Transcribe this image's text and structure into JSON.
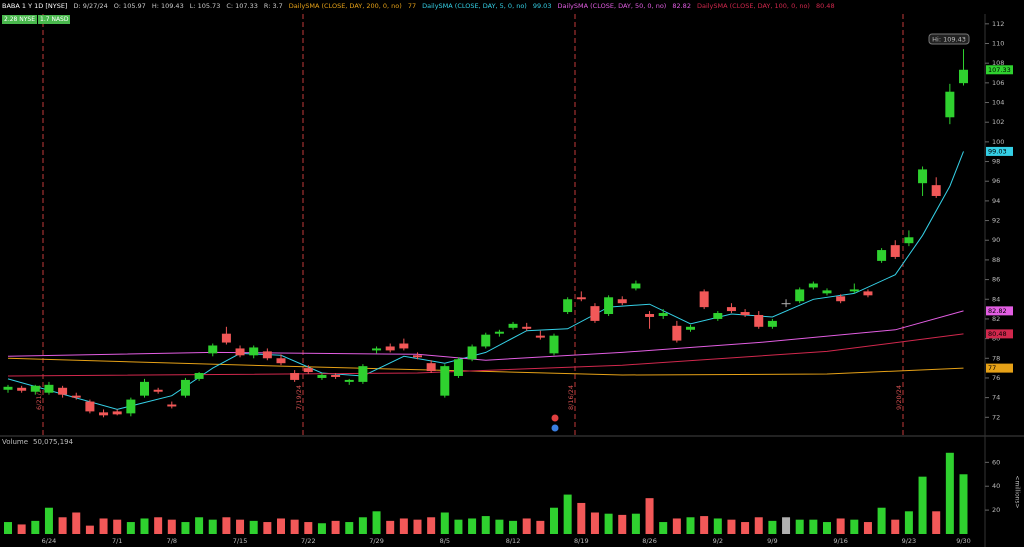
{
  "chart_data": {
    "type": "candlestick",
    "title": "BABA 1 Y 1D [NYSE]",
    "header": [
      "D: 9/27/24",
      "O: 105.97",
      "H: 109.43",
      "L: 105.73",
      "C: 107.33",
      "R: 3.7"
    ],
    "badges": [
      "2.28 NYSE",
      "1.7 NASD"
    ],
    "hi_label": "Hi: 109.43",
    "events": [
      "6/21/24",
      "7/19/24",
      "8/16/24",
      "9/20/24"
    ],
    "categories": [
      null,
      null,
      null,
      "6/24",
      null,
      null,
      null,
      null,
      "7/1",
      null,
      null,
      null,
      "7/8",
      null,
      null,
      null,
      null,
      "7/15",
      null,
      null,
      null,
      null,
      "7/22",
      null,
      null,
      null,
      null,
      "7/29",
      null,
      null,
      null,
      null,
      "8/5",
      null,
      null,
      null,
      null,
      "8/12",
      null,
      null,
      null,
      null,
      "8/19",
      null,
      null,
      null,
      null,
      "8/26",
      null,
      null,
      null,
      null,
      "9/2",
      null,
      null,
      null,
      "9/9",
      null,
      null,
      null,
      null,
      "9/16",
      null,
      null,
      null,
      null,
      "9/23",
      null,
      null,
      null,
      "9/30"
    ],
    "open": [
      74.8,
      75.0,
      74.6,
      74.5,
      75.0,
      74.2,
      73.6,
      72.5,
      72.6,
      72.4,
      74.2,
      74.8,
      73.3,
      74.2,
      75.9,
      78.5,
      80.5,
      79.0,
      78.3,
      78.7,
      78.0,
      76.5,
      77.0,
      76.0,
      76.3,
      75.6,
      75.6,
      78.8,
      79.2,
      79.5,
      78.3,
      77.5,
      74.2,
      76.2,
      77.9,
      79.2,
      80.5,
      81.1,
      81.2,
      80.3,
      78.5,
      82.7,
      84.2,
      83.3,
      82.5,
      84.0,
      85.1,
      82.5,
      82.3,
      81.3,
      80.9,
      84.8,
      82.0,
      83.2,
      82.7,
      82.4,
      81.2,
      83.6,
      83.8,
      85.2,
      84.6,
      84.3,
      84.8,
      84.8,
      87.9,
      89.5,
      89.7,
      95.8,
      95.6,
      102.5,
      105.97
    ],
    "high": [
      75.3,
      75.2,
      75.3,
      75.6,
      75.2,
      74.5,
      73.8,
      72.8,
      72.8,
      74.0,
      75.9,
      75.0,
      73.6,
      76.0,
      76.6,
      79.5,
      81.2,
      79.3,
      79.3,
      79.0,
      78.4,
      76.8,
      77.3,
      76.5,
      76.5,
      75.9,
      77.4,
      79.2,
      79.5,
      80.0,
      78.6,
      77.8,
      77.4,
      78.1,
      79.4,
      80.6,
      80.9,
      81.7,
      81.6,
      80.8,
      80.5,
      84.2,
      84.8,
      83.6,
      84.4,
      84.3,
      85.9,
      82.8,
      83.0,
      81.8,
      81.4,
      85.0,
      82.8,
      83.6,
      83.0,
      82.8,
      82.0,
      84.0,
      85.2,
      85.8,
      85.1,
      84.5,
      85.6,
      85.0,
      89.2,
      90.0,
      91.0,
      97.5,
      96.4,
      105.9,
      109.43
    ],
    "low": [
      74.5,
      74.5,
      74.3,
      74.3,
      74.0,
      73.8,
      72.4,
      72.0,
      72.2,
      72.1,
      74.0,
      74.4,
      72.9,
      74.0,
      75.7,
      78.2,
      79.4,
      78.1,
      78.0,
      77.8,
      77.3,
      75.6,
      76.4,
      75.8,
      75.9,
      75.3,
      75.4,
      78.5,
      78.6,
      78.8,
      77.9,
      76.5,
      74.0,
      76.0,
      77.7,
      79.0,
      80.2,
      80.9,
      80.8,
      79.9,
      78.3,
      82.5,
      83.8,
      81.6,
      82.3,
      83.4,
      84.9,
      81.0,
      82.0,
      79.6,
      80.7,
      83.0,
      81.8,
      82.6,
      82.2,
      81.0,
      81.0,
      83.2,
      83.6,
      85.0,
      84.4,
      83.6,
      84.6,
      84.2,
      87.7,
      88.1,
      89.4,
      94.5,
      94.3,
      101.8,
      105.73
    ],
    "close": [
      75.1,
      74.7,
      75.2,
      75.3,
      74.3,
      74.0,
      72.6,
      72.2,
      72.3,
      73.8,
      75.6,
      74.6,
      73.1,
      75.8,
      76.5,
      79.3,
      79.6,
      78.3,
      79.1,
      78.0,
      77.5,
      75.8,
      76.6,
      76.3,
      76.1,
      75.8,
      77.2,
      79.0,
      78.8,
      79.0,
      78.1,
      76.7,
      77.2,
      77.9,
      79.2,
      80.4,
      80.7,
      81.5,
      81.0,
      80.1,
      80.3,
      84.0,
      84.0,
      81.8,
      84.2,
      83.6,
      85.6,
      82.2,
      82.6,
      79.8,
      81.2,
      83.2,
      82.6,
      82.8,
      82.4,
      81.2,
      81.8,
      83.6,
      85.0,
      85.6,
      84.9,
      83.8,
      85.0,
      84.4,
      89.0,
      88.3,
      90.3,
      97.2,
      94.5,
      105.1,
      107.33
    ],
    "colors": {
      "up": "#2fd12f",
      "down": "#f25858",
      "flat": "#b0b0b0"
    },
    "ylim": [
      70.2,
      113.0
    ],
    "yticks": [
      72,
      74,
      76,
      78,
      80,
      82,
      84,
      86,
      88,
      90,
      92,
      94,
      96,
      98,
      100,
      102,
      104,
      106,
      108,
      110,
      112
    ],
    "overlays": [
      {
        "name": "DailySMA (CLOSE, DAY, 200, 0, no)",
        "color": "#e6a117",
        "x": [
          0,
          20,
          45,
          60,
          70
        ],
        "values": [
          78.0,
          77.2,
          76.3,
          76.4,
          77
        ]
      },
      {
        "name": "DailySMA (CLOSE, DAY, 5, 0, no)",
        "color": "#35d0e6",
        "x": [
          0,
          8,
          12,
          15,
          17,
          20,
          23,
          26,
          29,
          32,
          35,
          38,
          41,
          44,
          47,
          50,
          53,
          56,
          59,
          62,
          65,
          67,
          69,
          70
        ],
        "values": [
          75.9,
          72.8,
          74.2,
          77.0,
          78.5,
          78.3,
          76.5,
          76.2,
          78.2,
          77.5,
          78.6,
          80.8,
          81.0,
          83.2,
          83.5,
          81.5,
          82.5,
          82.2,
          84.0,
          84.6,
          86.5,
          90.5,
          95.5,
          99.03
        ]
      },
      {
        "name": "DailySMA (CLOSE, DAY, 50, 0, no)",
        "color": "#e35ee3",
        "x": [
          0,
          15,
          30,
          35,
          45,
          55,
          65,
          70
        ],
        "values": [
          78.2,
          78.6,
          78.4,
          77.8,
          78.6,
          79.6,
          80.9,
          82.82
        ]
      },
      {
        "name": "DailySMA (CLOSE, DAY, 100, 0, no)",
        "color": "#d1284d",
        "x": [
          0,
          30,
          45,
          60,
          70
        ],
        "values": [
          76.2,
          76.5,
          77.3,
          78.7,
          80.48
        ]
      }
    ],
    "volume": {
      "label": "Volume",
      "total": "50,075,194",
      "unit": "<millions>",
      "values": [
        10,
        8,
        11,
        22,
        14,
        18,
        7,
        13,
        12,
        10,
        13,
        14,
        12,
        10,
        14,
        12,
        14,
        12,
        11,
        10,
        13,
        12,
        10,
        9,
        11,
        10,
        14,
        19,
        11,
        13,
        12,
        14,
        18,
        12,
        13,
        15,
        12,
        11,
        13,
        11,
        22,
        33,
        26,
        18,
        17,
        16,
        17,
        30,
        10,
        13,
        14,
        15,
        13,
        12,
        10,
        14,
        11,
        14,
        12,
        12,
        10,
        13,
        12,
        10,
        22,
        12,
        19,
        48,
        19,
        68,
        50
      ],
      "ylim": [
        0,
        72
      ],
      "yticks": [
        20,
        40,
        60
      ]
    }
  }
}
